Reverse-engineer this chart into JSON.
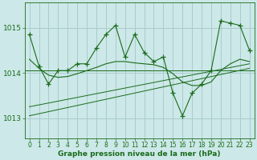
{
  "title": "Graphe pression niveau de la mer (hPa)",
  "bg_color": "#cce8e8",
  "grid_color": "#aacccc",
  "line_color": "#1a6b1a",
  "xlim": [
    -0.5,
    23.5
  ],
  "ylim": [
    1012.55,
    1015.55
  ],
  "yticks": [
    1013,
    1014,
    1015
  ],
  "xticks": [
    0,
    1,
    2,
    3,
    4,
    5,
    6,
    7,
    8,
    9,
    10,
    11,
    12,
    13,
    14,
    15,
    16,
    17,
    18,
    19,
    20,
    21,
    22,
    23
  ],
  "main_data": [
    1014.85,
    1014.15,
    1013.75,
    1014.05,
    1014.05,
    1014.2,
    1014.2,
    1014.55,
    1014.85,
    1015.05,
    1014.35,
    1014.85,
    1014.45,
    1014.25,
    1014.35,
    1013.55,
    1013.05,
    1013.55,
    1013.75,
    1014.05,
    1015.15,
    1015.1,
    1015.05,
    1014.5
  ],
  "smooth_data": [
    1014.3,
    1014.1,
    1013.95,
    1013.9,
    1013.92,
    1013.98,
    1014.05,
    1014.12,
    1014.2,
    1014.25,
    1014.25,
    1014.22,
    1014.2,
    1014.18,
    1014.12,
    1013.98,
    1013.8,
    1013.72,
    1013.72,
    1013.8,
    1014.05,
    1014.2,
    1014.3,
    1014.25
  ],
  "trend1_x": [
    0,
    23
  ],
  "trend1_y": [
    1013.05,
    1014.1
  ],
  "trend2_x": [
    0,
    23
  ],
  "trend2_y": [
    1013.25,
    1014.2
  ],
  "mean_line_y": 1014.05,
  "title_fontsize": 6.5,
  "tick_fontsize": 5.5,
  "ytick_fontsize": 6.5
}
